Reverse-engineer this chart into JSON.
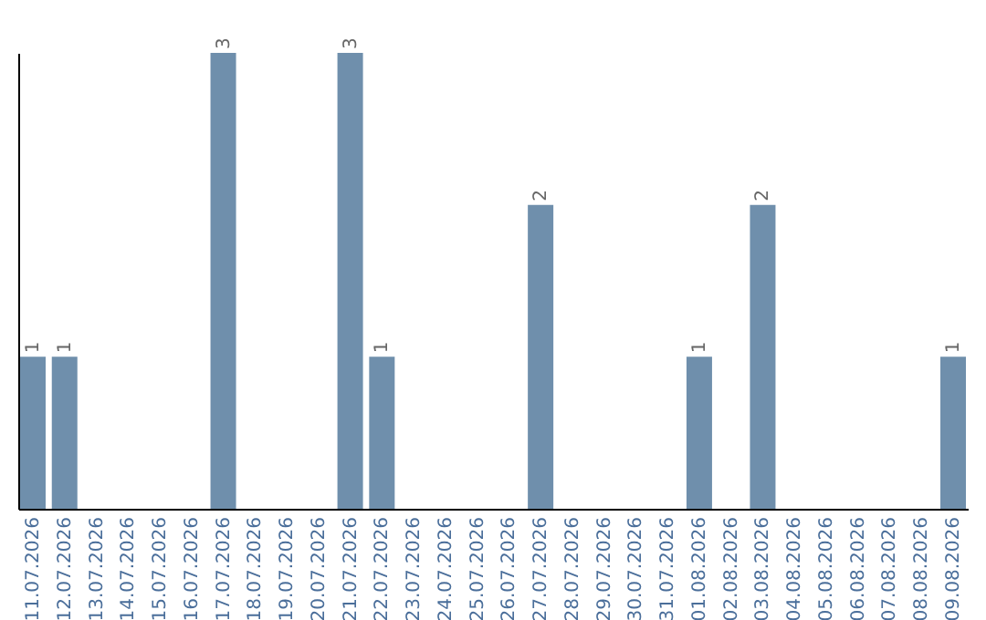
{
  "chart_data": {
    "type": "bar",
    "categories": [
      "11.07.2026",
      "12.07.2026",
      "13.07.2026",
      "14.07.2026",
      "15.07.2026",
      "16.07.2026",
      "17.07.2026",
      "18.07.2026",
      "19.07.2026",
      "20.07.2026",
      "21.07.2026",
      "22.07.2026",
      "23.07.2026",
      "24.07.2026",
      "25.07.2026",
      "26.07.2026",
      "27.07.2026",
      "28.07.2026",
      "29.07.2026",
      "30.07.2026",
      "31.07.2026",
      "01.08.2026",
      "02.08.2026",
      "03.08.2026",
      "04.08.2026",
      "05.08.2026",
      "06.08.2026",
      "07.08.2026",
      "08.08.2026",
      "09.08.2026"
    ],
    "values": [
      1,
      1,
      0,
      0,
      0,
      0,
      3,
      0,
      0,
      0,
      3,
      1,
      0,
      0,
      0,
      0,
      2,
      0,
      0,
      0,
      0,
      1,
      0,
      2,
      0,
      0,
      0,
      0,
      0,
      1
    ],
    "color": "#6f8fac",
    "ylim": [
      0,
      3
    ],
    "value_labels": [
      "1",
      "1",
      null,
      null,
      null,
      null,
      "3",
      null,
      null,
      null,
      "3",
      "1",
      null,
      null,
      null,
      null,
      "2",
      null,
      null,
      null,
      null,
      "1",
      null,
      "2",
      null,
      null,
      null,
      null,
      null,
      "1"
    ],
    "tick_labels": "x",
    "grid": false
  }
}
